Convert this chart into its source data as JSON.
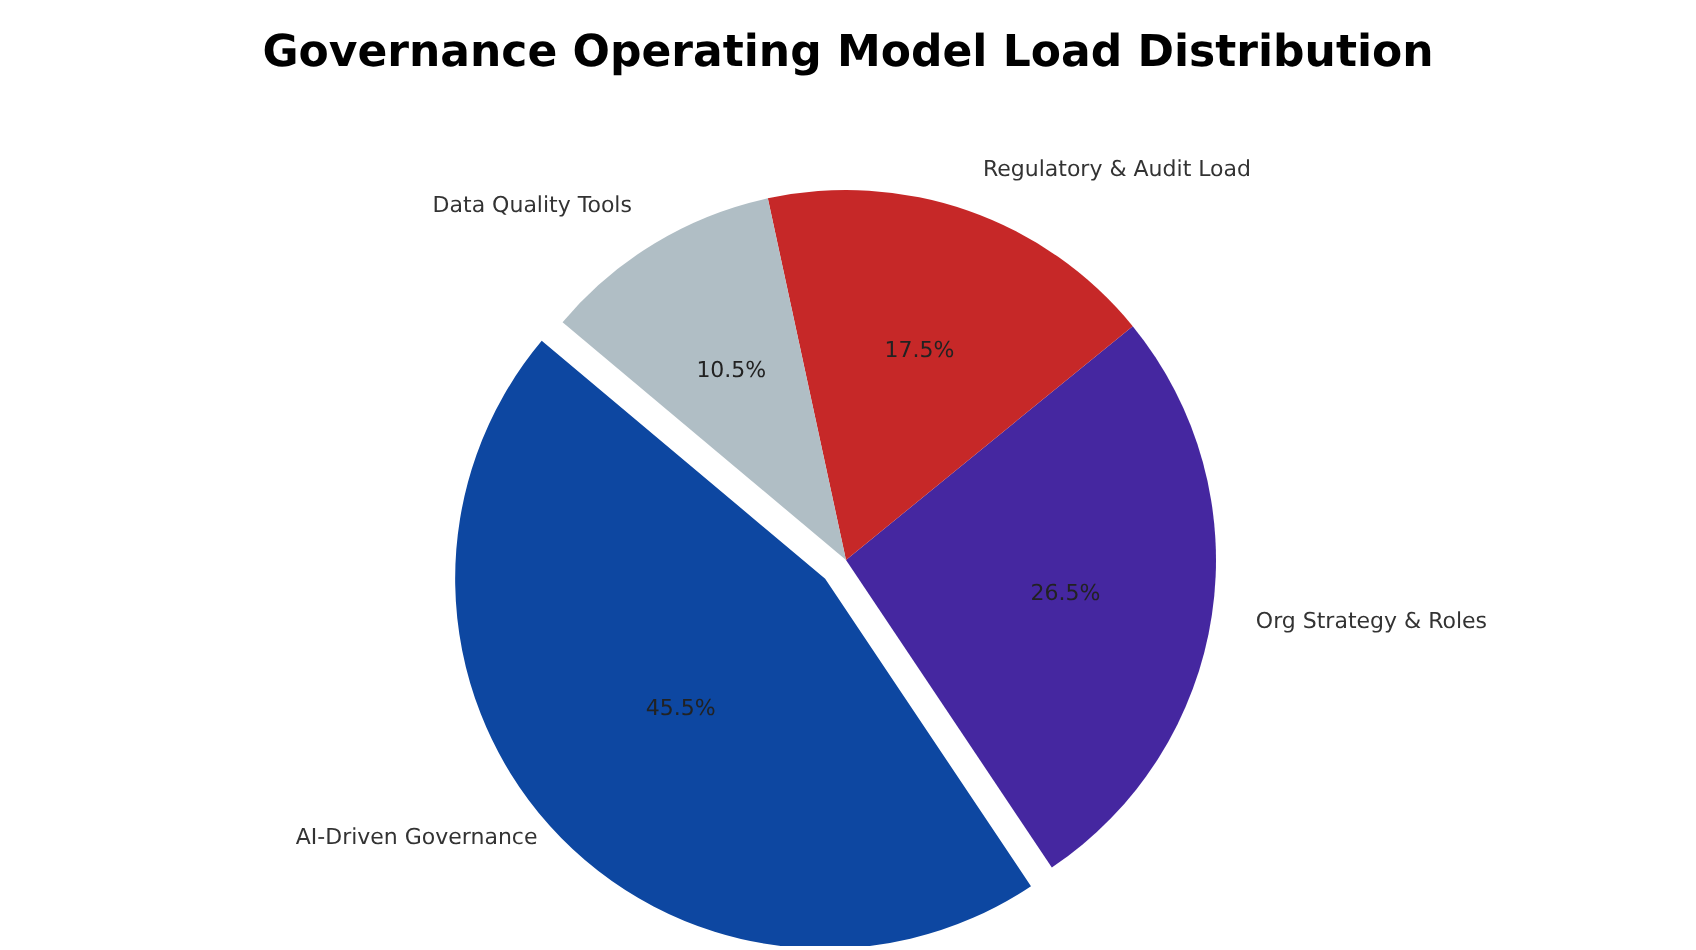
{
  "chart_data": {
    "type": "pie",
    "title": "Governance Operating Model Load Distribution",
    "categories": [
      "AI-Driven Governance",
      "Org Strategy & Roles",
      "Regulatory & Audit Load",
      "Data Quality Tools"
    ],
    "values": [
      45.5,
      26.5,
      17.5,
      10.5
    ],
    "value_labels": [
      "45.5%",
      "26.5%",
      "17.5%",
      "10.5%"
    ],
    "colors": [
      "#0d47a1",
      "#4527a0",
      "#c62828",
      "#b0bec5"
    ]
  }
}
